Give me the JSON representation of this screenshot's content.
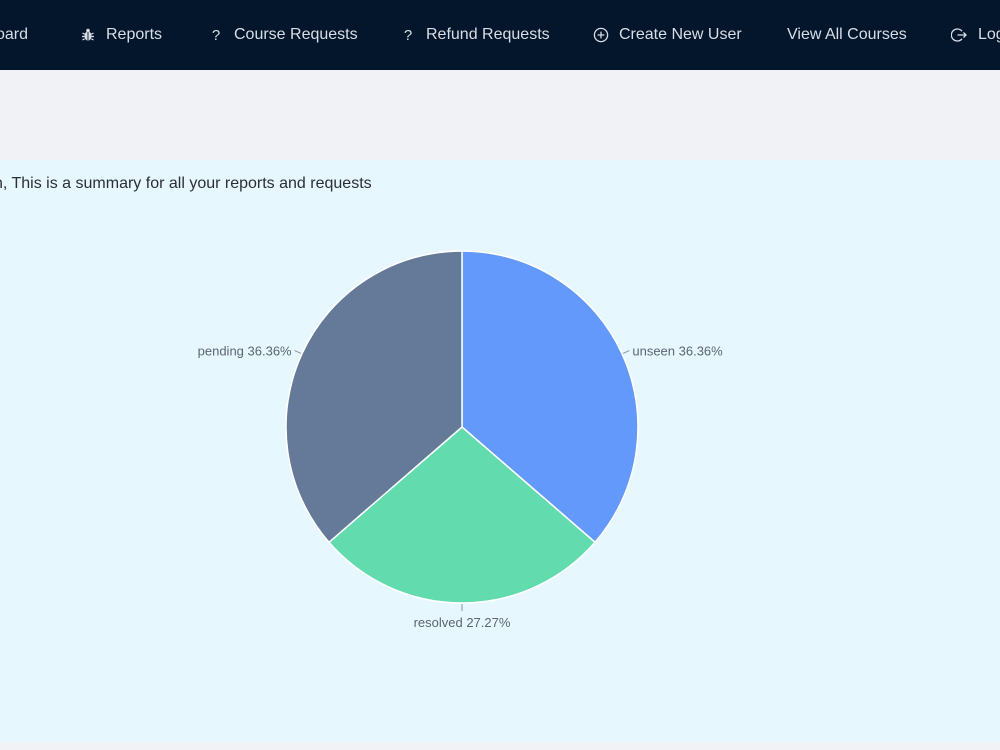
{
  "nav": {
    "items": [
      {
        "label": "oard",
        "icon": ""
      },
      {
        "label": "Reports",
        "icon": "bug-icon"
      },
      {
        "label": "Course Requests",
        "icon": "question-icon"
      },
      {
        "label": "Refund Requests",
        "icon": "question-icon"
      },
      {
        "label": "Create New User",
        "icon": "plus-circle-icon"
      },
      {
        "label": "View All Courses",
        "icon": ""
      },
      {
        "label": "Log",
        "icon": "logout-icon"
      }
    ]
  },
  "summary": {
    "text": "n, This is a summary for all your reports and requests"
  },
  "chart_data": {
    "type": "pie",
    "categories": [
      "unseen",
      "resolved",
      "pending"
    ],
    "values": [
      36.36,
      27.27,
      36.36
    ],
    "labels": [
      "unseen 36.36%",
      "resolved 27.27%",
      "pending 36.36%"
    ],
    "colors": [
      "#6399fb",
      "#62dcaf",
      "#647a98"
    ]
  }
}
